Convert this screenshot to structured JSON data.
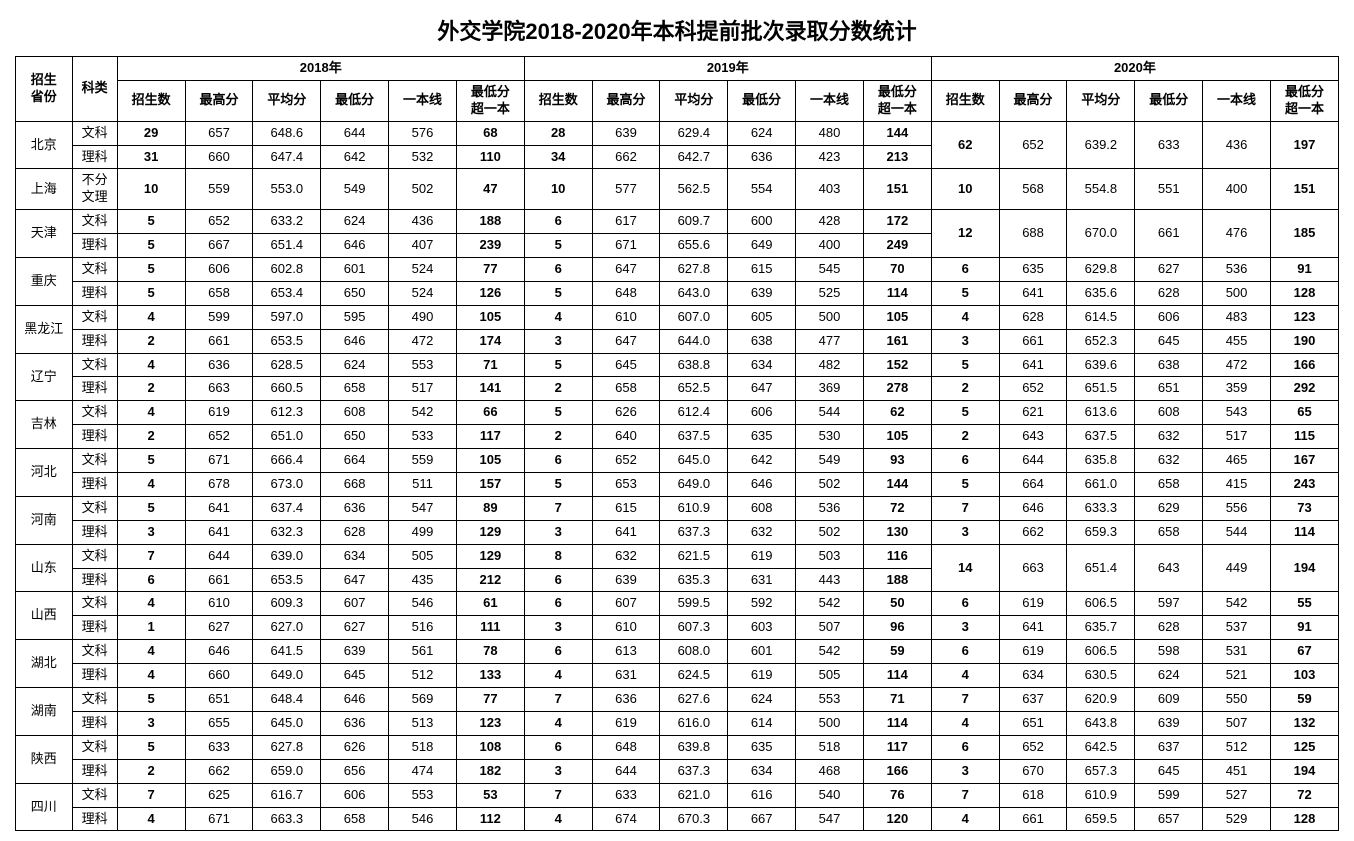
{
  "title": "外交学院2018-2020年本科提前批次录取分数统计",
  "years": [
    "2018年",
    "2019年",
    "2020年"
  ],
  "headers": {
    "prov": "招生\n省份",
    "sub": "科类"
  },
  "cols": [
    "招生数",
    "最高分",
    "平均分",
    "最低分",
    "一本线",
    "最低分\n超一本"
  ],
  "provinces": [
    {
      "name": "北京",
      "rows": [
        {
          "sub": "文科",
          "y18": [
            "29",
            "657",
            "648.6",
            "644",
            "576",
            "68"
          ],
          "y19": [
            "28",
            "639",
            "629.4",
            "624",
            "480",
            "144"
          ],
          "merge20": true
        },
        {
          "sub": "理科",
          "y18": [
            "31",
            "660",
            "647.4",
            "642",
            "532",
            "110"
          ],
          "y19": [
            "34",
            "662",
            "642.7",
            "636",
            "423",
            "213"
          ],
          "y20": [
            "62",
            "652",
            "639.2",
            "633",
            "436",
            "197"
          ]
        }
      ]
    },
    {
      "name": "上海",
      "rows": [
        {
          "sub": "不分\n文理",
          "y18": [
            "10",
            "559",
            "553.0",
            "549",
            "502",
            "47"
          ],
          "y19": [
            "10",
            "577",
            "562.5",
            "554",
            "403",
            "151"
          ],
          "y20": [
            "10",
            "568",
            "554.8",
            "551",
            "400",
            "151"
          ]
        }
      ]
    },
    {
      "name": "天津",
      "rows": [
        {
          "sub": "文科",
          "y18": [
            "5",
            "652",
            "633.2",
            "624",
            "436",
            "188"
          ],
          "y19": [
            "6",
            "617",
            "609.7",
            "600",
            "428",
            "172"
          ],
          "merge20": true
        },
        {
          "sub": "理科",
          "y18": [
            "5",
            "667",
            "651.4",
            "646",
            "407",
            "239"
          ],
          "y19": [
            "5",
            "671",
            "655.6",
            "649",
            "400",
            "249"
          ],
          "y20": [
            "12",
            "688",
            "670.0",
            "661",
            "476",
            "185"
          ]
        }
      ]
    },
    {
      "name": "重庆",
      "rows": [
        {
          "sub": "文科",
          "y18": [
            "5",
            "606",
            "602.8",
            "601",
            "524",
            "77"
          ],
          "y19": [
            "6",
            "647",
            "627.8",
            "615",
            "545",
            "70"
          ],
          "y20": [
            "6",
            "635",
            "629.8",
            "627",
            "536",
            "91"
          ]
        },
        {
          "sub": "理科",
          "y18": [
            "5",
            "658",
            "653.4",
            "650",
            "524",
            "126"
          ],
          "y19": [
            "5",
            "648",
            "643.0",
            "639",
            "525",
            "114"
          ],
          "y20": [
            "5",
            "641",
            "635.6",
            "628",
            "500",
            "128"
          ]
        }
      ]
    },
    {
      "name": "黑龙江",
      "rows": [
        {
          "sub": "文科",
          "y18": [
            "4",
            "599",
            "597.0",
            "595",
            "490",
            "105"
          ],
          "y19": [
            "4",
            "610",
            "607.0",
            "605",
            "500",
            "105"
          ],
          "y20": [
            "4",
            "628",
            "614.5",
            "606",
            "483",
            "123"
          ]
        },
        {
          "sub": "理科",
          "y18": [
            "2",
            "661",
            "653.5",
            "646",
            "472",
            "174"
          ],
          "y19": [
            "3",
            "647",
            "644.0",
            "638",
            "477",
            "161"
          ],
          "y20": [
            "3",
            "661",
            "652.3",
            "645",
            "455",
            "190"
          ]
        }
      ]
    },
    {
      "name": "辽宁",
      "rows": [
        {
          "sub": "文科",
          "y18": [
            "4",
            "636",
            "628.5",
            "624",
            "553",
            "71"
          ],
          "y19": [
            "5",
            "645",
            "638.8",
            "634",
            "482",
            "152"
          ],
          "y20": [
            "5",
            "641",
            "639.6",
            "638",
            "472",
            "166"
          ]
        },
        {
          "sub": "理科",
          "y18": [
            "2",
            "663",
            "660.5",
            "658",
            "517",
            "141"
          ],
          "y19": [
            "2",
            "658",
            "652.5",
            "647",
            "369",
            "278"
          ],
          "y20": [
            "2",
            "652",
            "651.5",
            "651",
            "359",
            "292"
          ]
        }
      ]
    },
    {
      "name": "吉林",
      "rows": [
        {
          "sub": "文科",
          "y18": [
            "4",
            "619",
            "612.3",
            "608",
            "542",
            "66"
          ],
          "y19": [
            "5",
            "626",
            "612.4",
            "606",
            "544",
            "62"
          ],
          "y20": [
            "5",
            "621",
            "613.6",
            "608",
            "543",
            "65"
          ]
        },
        {
          "sub": "理科",
          "y18": [
            "2",
            "652",
            "651.0",
            "650",
            "533",
            "117"
          ],
          "y19": [
            "2",
            "640",
            "637.5",
            "635",
            "530",
            "105"
          ],
          "y20": [
            "2",
            "643",
            "637.5",
            "632",
            "517",
            "115"
          ]
        }
      ]
    },
    {
      "name": "河北",
      "rows": [
        {
          "sub": "文科",
          "y18": [
            "5",
            "671",
            "666.4",
            "664",
            "559",
            "105"
          ],
          "y19": [
            "6",
            "652",
            "645.0",
            "642",
            "549",
            "93"
          ],
          "y20": [
            "6",
            "644",
            "635.8",
            "632",
            "465",
            "167"
          ]
        },
        {
          "sub": "理科",
          "y18": [
            "4",
            "678",
            "673.0",
            "668",
            "511",
            "157"
          ],
          "y19": [
            "5",
            "653",
            "649.0",
            "646",
            "502",
            "144"
          ],
          "y20": [
            "5",
            "664",
            "661.0",
            "658",
            "415",
            "243"
          ]
        }
      ]
    },
    {
      "name": "河南",
      "rows": [
        {
          "sub": "文科",
          "y18": [
            "5",
            "641",
            "637.4",
            "636",
            "547",
            "89"
          ],
          "y19": [
            "7",
            "615",
            "610.9",
            "608",
            "536",
            "72"
          ],
          "y20": [
            "7",
            "646",
            "633.3",
            "629",
            "556",
            "73"
          ]
        },
        {
          "sub": "理科",
          "y18": [
            "3",
            "641",
            "632.3",
            "628",
            "499",
            "129"
          ],
          "y19": [
            "3",
            "641",
            "637.3",
            "632",
            "502",
            "130"
          ],
          "y20": [
            "3",
            "662",
            "659.3",
            "658",
            "544",
            "114"
          ]
        }
      ]
    },
    {
      "name": "山东",
      "rows": [
        {
          "sub": "文科",
          "y18": [
            "7",
            "644",
            "639.0",
            "634",
            "505",
            "129"
          ],
          "y19": [
            "8",
            "632",
            "621.5",
            "619",
            "503",
            "116"
          ],
          "merge20": true
        },
        {
          "sub": "理科",
          "y18": [
            "6",
            "661",
            "653.5",
            "647",
            "435",
            "212"
          ],
          "y19": [
            "6",
            "639",
            "635.3",
            "631",
            "443",
            "188"
          ],
          "y20": [
            "14",
            "663",
            "651.4",
            "643",
            "449",
            "194"
          ]
        }
      ]
    },
    {
      "name": "山西",
      "rows": [
        {
          "sub": "文科",
          "y18": [
            "4",
            "610",
            "609.3",
            "607",
            "546",
            "61"
          ],
          "y19": [
            "6",
            "607",
            "599.5",
            "592",
            "542",
            "50"
          ],
          "y20": [
            "6",
            "619",
            "606.5",
            "597",
            "542",
            "55"
          ]
        },
        {
          "sub": "理科",
          "y18": [
            "1",
            "627",
            "627.0",
            "627",
            "516",
            "111"
          ],
          "y19": [
            "3",
            "610",
            "607.3",
            "603",
            "507",
            "96"
          ],
          "y20": [
            "3",
            "641",
            "635.7",
            "628",
            "537",
            "91"
          ]
        }
      ]
    },
    {
      "name": "湖北",
      "rows": [
        {
          "sub": "文科",
          "y18": [
            "4",
            "646",
            "641.5",
            "639",
            "561",
            "78"
          ],
          "y19": [
            "6",
            "613",
            "608.0",
            "601",
            "542",
            "59"
          ],
          "y20": [
            "6",
            "619",
            "606.5",
            "598",
            "531",
            "67"
          ]
        },
        {
          "sub": "理科",
          "y18": [
            "4",
            "660",
            "649.0",
            "645",
            "512",
            "133"
          ],
          "y19": [
            "4",
            "631",
            "624.5",
            "619",
            "505",
            "114"
          ],
          "y20": [
            "4",
            "634",
            "630.5",
            "624",
            "521",
            "103"
          ]
        }
      ]
    },
    {
      "name": "湖南",
      "rows": [
        {
          "sub": "文科",
          "y18": [
            "5",
            "651",
            "648.4",
            "646",
            "569",
            "77"
          ],
          "y19": [
            "7",
            "636",
            "627.6",
            "624",
            "553",
            "71"
          ],
          "y20": [
            "7",
            "637",
            "620.9",
            "609",
            "550",
            "59"
          ]
        },
        {
          "sub": "理科",
          "y18": [
            "3",
            "655",
            "645.0",
            "636",
            "513",
            "123"
          ],
          "y19": [
            "4",
            "619",
            "616.0",
            "614",
            "500",
            "114"
          ],
          "y20": [
            "4",
            "651",
            "643.8",
            "639",
            "507",
            "132"
          ]
        }
      ]
    },
    {
      "name": "陕西",
      "rows": [
        {
          "sub": "文科",
          "y18": [
            "5",
            "633",
            "627.8",
            "626",
            "518",
            "108"
          ],
          "y19": [
            "6",
            "648",
            "639.8",
            "635",
            "518",
            "117"
          ],
          "y20": [
            "6",
            "652",
            "642.5",
            "637",
            "512",
            "125"
          ]
        },
        {
          "sub": "理科",
          "y18": [
            "2",
            "662",
            "659.0",
            "656",
            "474",
            "182"
          ],
          "y19": [
            "3",
            "644",
            "637.3",
            "634",
            "468",
            "166"
          ],
          "y20": [
            "3",
            "670",
            "657.3",
            "645",
            "451",
            "194"
          ]
        }
      ]
    },
    {
      "name": "四川",
      "rows": [
        {
          "sub": "文科",
          "y18": [
            "7",
            "625",
            "616.7",
            "606",
            "553",
            "53"
          ],
          "y19": [
            "7",
            "633",
            "621.0",
            "616",
            "540",
            "76"
          ],
          "y20": [
            "7",
            "618",
            "610.9",
            "599",
            "527",
            "72"
          ]
        },
        {
          "sub": "理科",
          "y18": [
            "4",
            "671",
            "663.3",
            "658",
            "546",
            "112"
          ],
          "y19": [
            "4",
            "674",
            "670.3",
            "667",
            "547",
            "120"
          ],
          "y20": [
            "4",
            "661",
            "659.5",
            "657",
            "529",
            "128"
          ]
        }
      ]
    }
  ],
  "boldCols": [
    0,
    5
  ]
}
